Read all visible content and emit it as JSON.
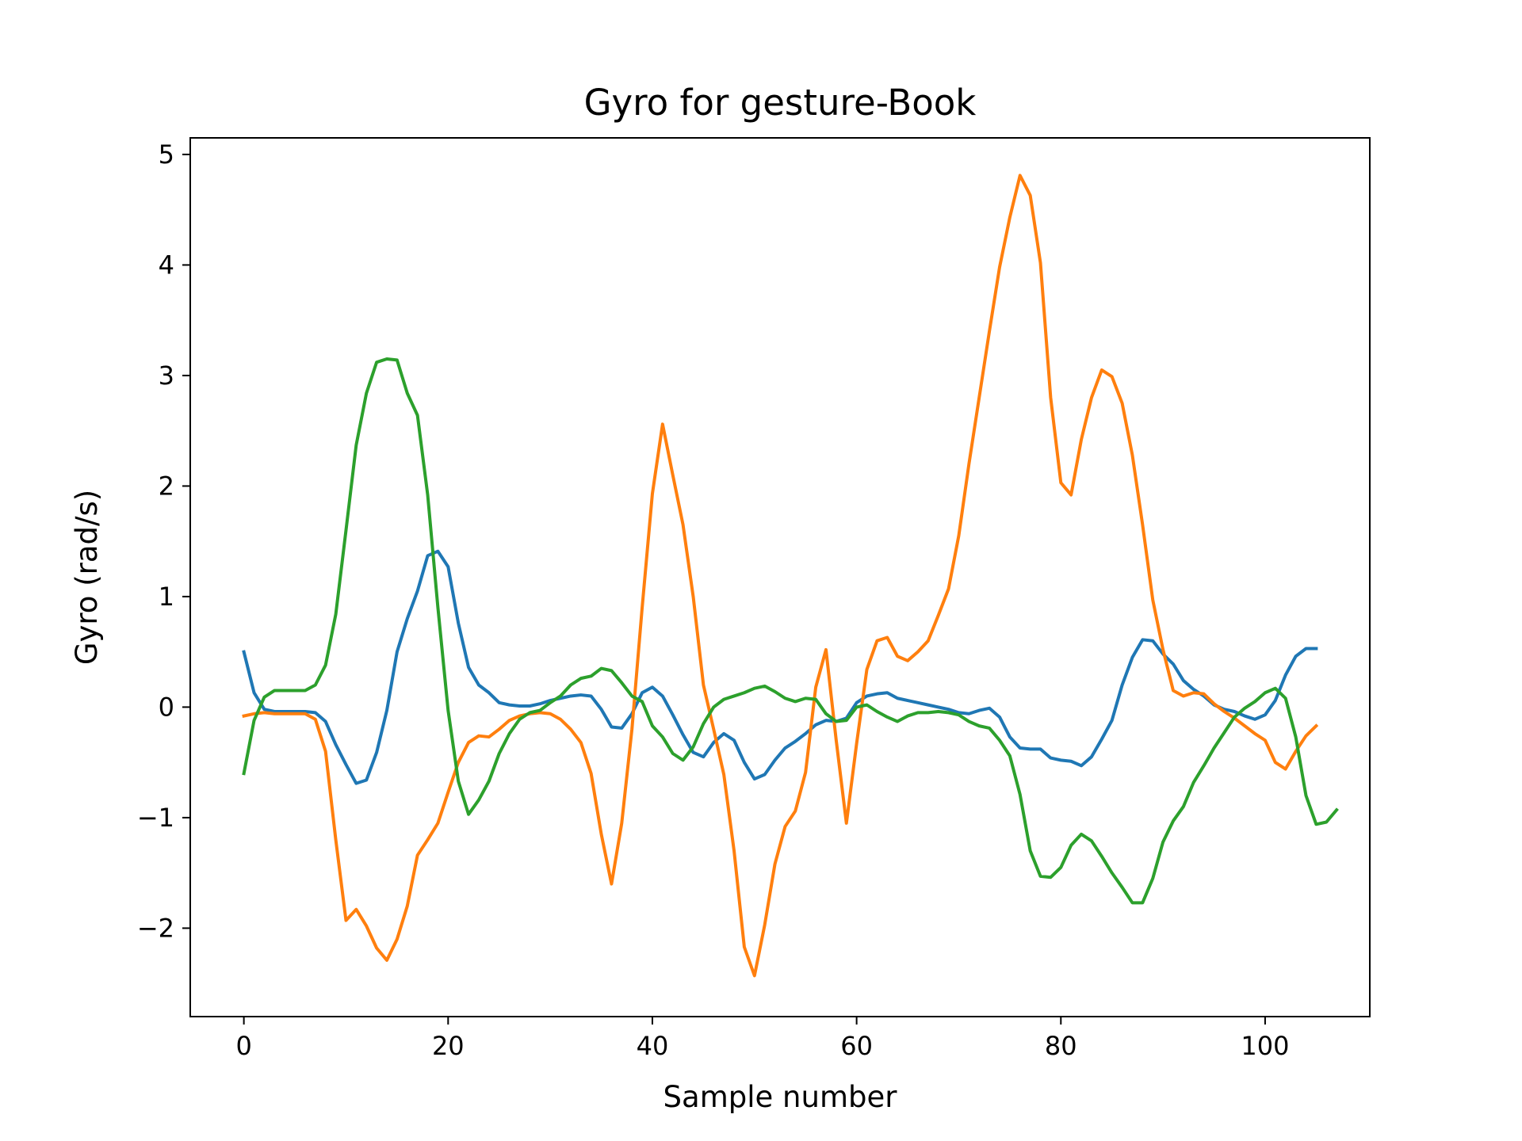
{
  "chart_data": {
    "type": "line",
    "title": "Gyro for gesture-Book",
    "xlabel": "Sample number",
    "ylabel": "Gyro  (rad/s)",
    "xlim": [
      -5.25,
      110.25
    ],
    "ylim": [
      -2.8,
      5.15
    ],
    "xticks": [
      0,
      20,
      40,
      60,
      80,
      100
    ],
    "xtick_labels": [
      "0",
      "20",
      "40",
      "60",
      "80",
      "100"
    ],
    "yticks": [
      -2,
      -1,
      0,
      1,
      2,
      3,
      4,
      5
    ],
    "ytick_labels": [
      "−2",
      "−1",
      "0",
      "1",
      "2",
      "3",
      "4",
      "5"
    ],
    "grid": false,
    "legend": "none",
    "x_start": 0,
    "x_step": 1,
    "series": [
      {
        "color": "#1f77b4",
        "values": [
          0.5,
          0.13,
          -0.02,
          -0.04,
          -0.04,
          -0.04,
          -0.04,
          -0.05,
          -0.13,
          -0.34,
          -0.52,
          -0.69,
          -0.66,
          -0.41,
          -0.03,
          0.5,
          0.8,
          1.05,
          1.37,
          1.41,
          1.27,
          0.76,
          0.36,
          0.2,
          0.13,
          0.04,
          0.02,
          0.01,
          0.01,
          0.03,
          0.06,
          0.08,
          0.1,
          0.11,
          0.1,
          -0.02,
          -0.18,
          -0.19,
          -0.06,
          0.13,
          0.18,
          0.1,
          -0.07,
          -0.25,
          -0.41,
          -0.45,
          -0.32,
          -0.24,
          -0.3,
          -0.5,
          -0.65,
          -0.61,
          -0.48,
          -0.37,
          -0.31,
          -0.24,
          -0.16,
          -0.12,
          -0.13,
          -0.1,
          0.04,
          0.1,
          0.12,
          0.13,
          0.08,
          0.06,
          0.04,
          0.02,
          0.0,
          -0.02,
          -0.05,
          -0.06,
          -0.03,
          -0.01,
          -0.09,
          -0.27,
          -0.37,
          -0.38,
          -0.38,
          -0.46,
          -0.48,
          -0.49,
          -0.53,
          -0.45,
          -0.29,
          -0.12,
          0.2,
          0.45,
          0.61,
          0.6,
          0.48,
          0.39,
          0.24,
          0.16,
          0.1,
          0.02,
          -0.02,
          -0.04,
          -0.08,
          -0.11,
          -0.07,
          0.06,
          0.29,
          0.46,
          0.53,
          0.53
        ]
      },
      {
        "color": "#ff7f0e",
        "values": [
          -0.08,
          -0.06,
          -0.05,
          -0.06,
          -0.06,
          -0.06,
          -0.06,
          -0.11,
          -0.4,
          -1.2,
          -1.93,
          -1.83,
          -1.98,
          -2.18,
          -2.29,
          -2.1,
          -1.8,
          -1.34,
          -1.2,
          -1.05,
          -0.77,
          -0.5,
          -0.32,
          -0.26,
          -0.27,
          -0.2,
          -0.12,
          -0.08,
          -0.06,
          -0.05,
          -0.06,
          -0.11,
          -0.2,
          -0.32,
          -0.6,
          -1.15,
          -1.6,
          -1.05,
          -0.2,
          0.9,
          1.93,
          2.56,
          2.1,
          1.65,
          1.0,
          0.2,
          -0.2,
          -0.61,
          -1.3,
          -2.17,
          -2.43,
          -1.97,
          -1.42,
          -1.08,
          -0.94,
          -0.59,
          0.18,
          0.52,
          -0.3,
          -1.05,
          -0.33,
          0.34,
          0.6,
          0.63,
          0.46,
          0.42,
          0.5,
          0.6,
          0.83,
          1.07,
          1.55,
          2.2,
          2.8,
          3.4,
          3.98,
          4.43,
          4.81,
          4.63,
          4.02,
          2.8,
          2.03,
          1.92,
          2.42,
          2.8,
          3.05,
          2.99,
          2.75,
          2.28,
          1.65,
          0.97,
          0.52,
          0.15,
          0.1,
          0.13,
          0.12,
          0.03,
          -0.04,
          -0.1,
          -0.17,
          -0.24,
          -0.3,
          -0.5,
          -0.56,
          -0.4,
          -0.26,
          -0.17
        ]
      },
      {
        "color": "#2ca02c",
        "values": [
          -0.6,
          -0.12,
          0.09,
          0.15,
          0.15,
          0.15,
          0.15,
          0.2,
          0.38,
          0.84,
          1.6,
          2.37,
          2.84,
          3.12,
          3.15,
          3.14,
          2.84,
          2.64,
          1.92,
          0.9,
          -0.03,
          -0.67,
          -0.97,
          -0.84,
          -0.67,
          -0.42,
          -0.24,
          -0.11,
          -0.05,
          -0.03,
          0.04,
          0.1,
          0.2,
          0.26,
          0.28,
          0.35,
          0.33,
          0.22,
          0.1,
          0.05,
          -0.17,
          -0.27,
          -0.42,
          -0.48,
          -0.36,
          -0.15,
          0.0,
          0.07,
          0.1,
          0.13,
          0.17,
          0.19,
          0.14,
          0.08,
          0.05,
          0.08,
          0.07,
          -0.06,
          -0.13,
          -0.12,
          0.0,
          0.02,
          -0.04,
          -0.09,
          -0.13,
          -0.08,
          -0.05,
          -0.05,
          -0.04,
          -0.05,
          -0.07,
          -0.13,
          -0.17,
          -0.19,
          -0.3,
          -0.44,
          -0.79,
          -1.3,
          -1.53,
          -1.54,
          -1.45,
          -1.25,
          -1.15,
          -1.21,
          -1.35,
          -1.5,
          -1.63,
          -1.77,
          -1.77,
          -1.55,
          -1.22,
          -1.03,
          -0.9,
          -0.68,
          -0.53,
          -0.37,
          -0.23,
          -0.09,
          -0.01,
          0.05,
          0.13,
          0.17,
          0.08,
          -0.27,
          -0.8,
          -1.06,
          -1.04,
          -0.93
        ]
      }
    ]
  }
}
